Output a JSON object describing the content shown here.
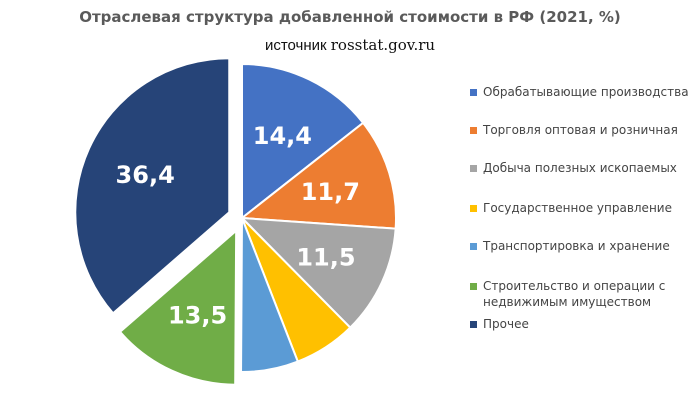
{
  "title": "Отраслевая структура добавленной стоимости в РФ (2021, %)",
  "source_prefix": "источник",
  "source_url": "rosstat.gov.ru",
  "chart_data": {
    "type": "pie",
    "title": "Отраслевая структура добавленной стоимости в РФ (2021, %)",
    "legend_position": "right",
    "slices": [
      {
        "label": "Обрабатывающие производства",
        "value": 14.4,
        "display": "14,4",
        "color": "#4472c4"
      },
      {
        "label": "Торговля оптовая и розничная",
        "value": 11.7,
        "display": "11,7",
        "color": "#ed7d31"
      },
      {
        "label": "Добыча полезных ископаемых",
        "value": 11.5,
        "display": "11,5",
        "color": "#a5a5a5"
      },
      {
        "label": "Государственное управление",
        "value": 6.5,
        "display": "",
        "color": "#ffc000"
      },
      {
        "label": "Транспортировка и хранение",
        "value": 6.0,
        "display": "",
        "color": "#5b9bd5"
      },
      {
        "label": "Строительство и операции с недвижимым имуществом",
        "value": 13.5,
        "display": "13,5",
        "color": "#70ad47",
        "exploded": true
      },
      {
        "label": "Прочее",
        "value": 36.4,
        "display": "36,4",
        "color": "#264478",
        "exploded": true
      }
    ]
  }
}
